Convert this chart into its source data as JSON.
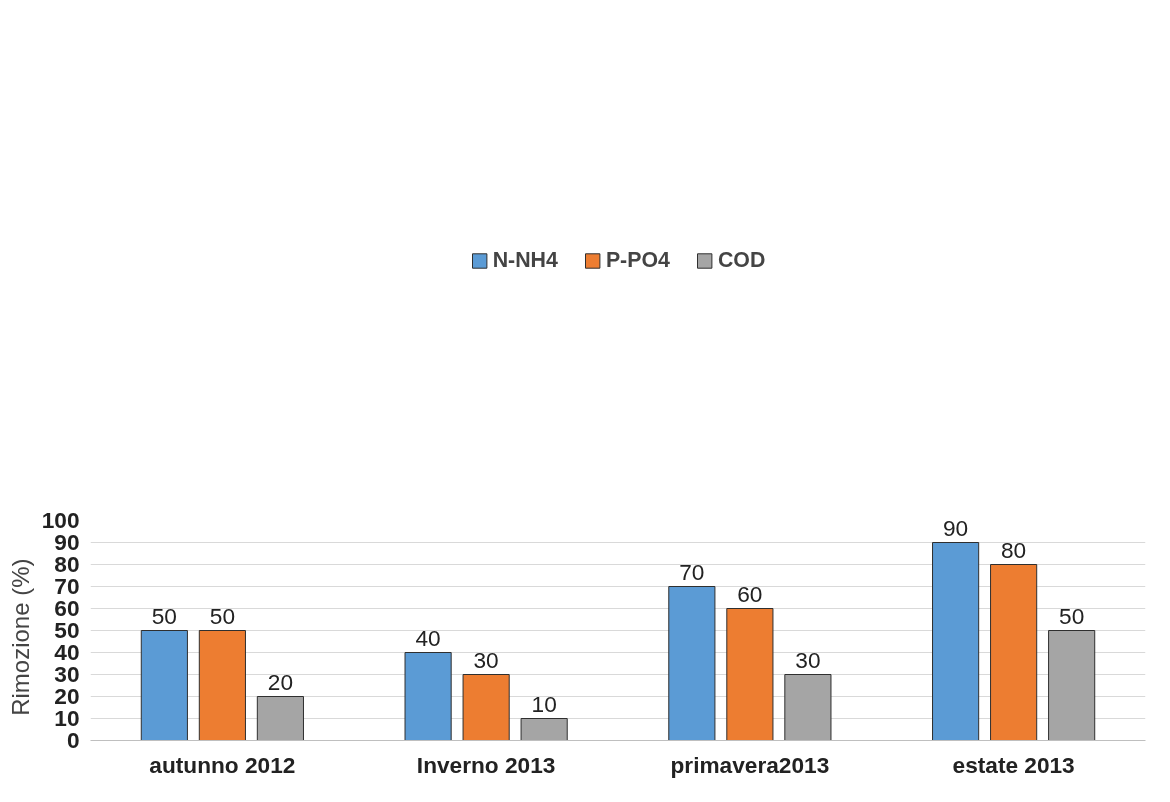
{
  "chart_data": {
    "type": "bar",
    "ylabel": "Rimozione   (%)",
    "categories": [
      "autunno 2012",
      "Inverno 2013",
      "primavera2013",
      "estate 2013"
    ],
    "series": [
      {
        "name": "N-NH4",
        "color": "#5b9bd5",
        "values": [
          50,
          40,
          70,
          90
        ]
      },
      {
        "name": "P-PO4",
        "color": "#ed7d31",
        "values": [
          50,
          30,
          60,
          80
        ]
      },
      {
        "name": "COD",
        "color": "#a5a5a5",
        "values": [
          20,
          10,
          30,
          50
        ]
      }
    ],
    "ylim": [
      0,
      100
    ],
    "yticks": [
      0,
      10,
      20,
      30,
      40,
      50,
      60,
      70,
      80,
      90,
      100
    ],
    "grid": "y",
    "legend": "top",
    "data_labels": true
  }
}
